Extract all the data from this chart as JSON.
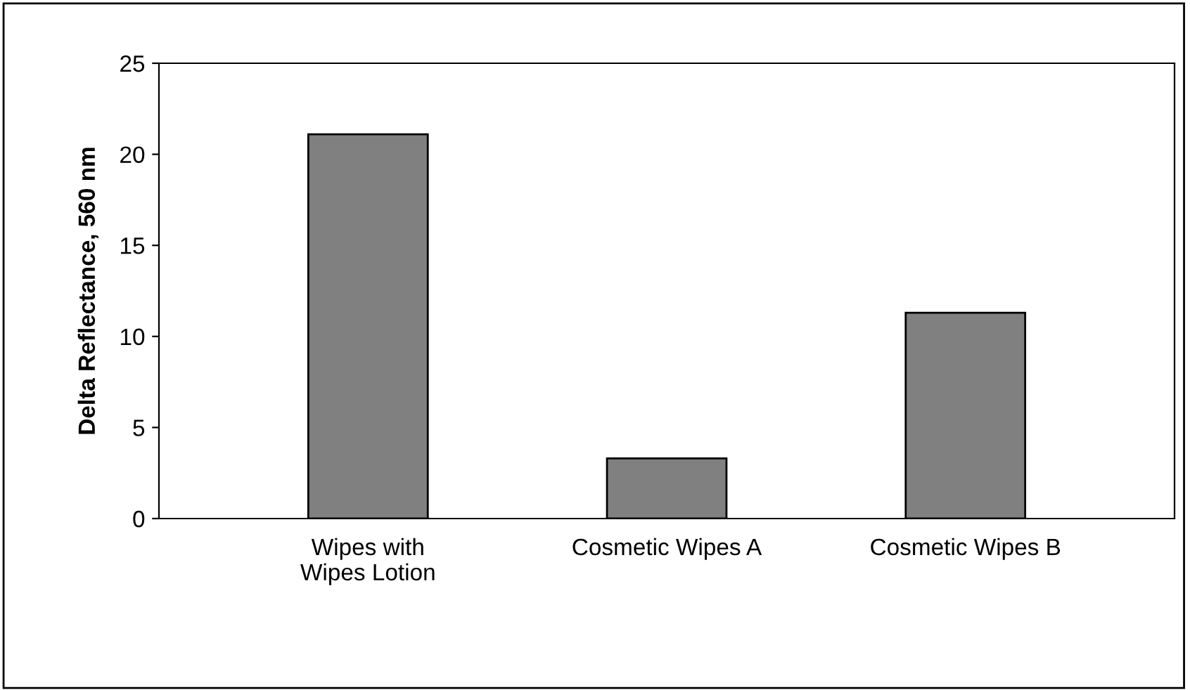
{
  "chart_data": {
    "type": "bar",
    "ylabel": "Delta Reflectance, 560 nm",
    "categories": [
      "Wipes with\nWipes Lotion",
      "Cosmetic Wipes A",
      "Cosmetic Wipes B"
    ],
    "values": [
      21.1,
      3.3,
      11.3
    ],
    "color": "#808080",
    "ylim": [
      0,
      25
    ],
    "yticks": [
      0,
      5,
      10,
      15,
      20,
      25
    ],
    "grid": false,
    "legend": false
  }
}
